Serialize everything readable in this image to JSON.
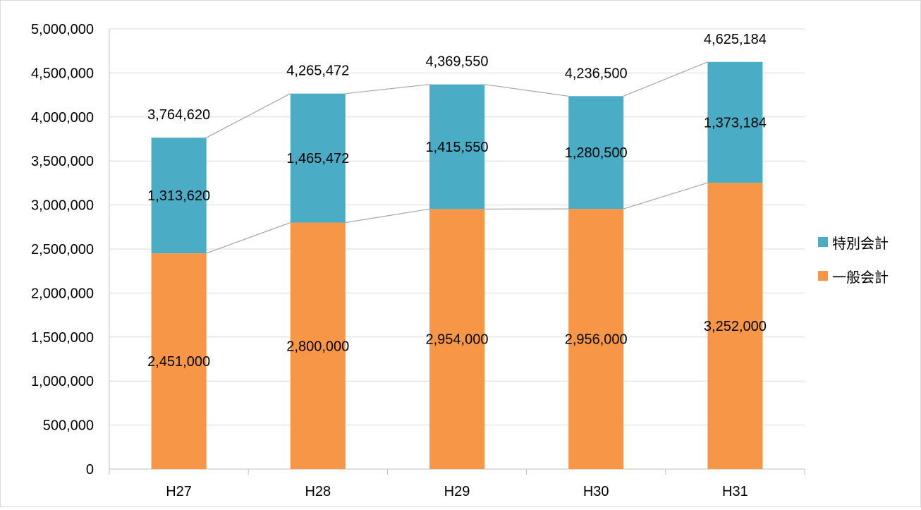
{
  "chart_data": {
    "type": "bar",
    "stacked": true,
    "categories": [
      "H27",
      "H28",
      "H29",
      "H30",
      "H31"
    ],
    "series": [
      {
        "name": "一般会計",
        "color": "#F79646",
        "values": [
          2451000,
          2800000,
          2954000,
          2956000,
          3252000
        ]
      },
      {
        "name": "特別会計",
        "color": "#4BACC6",
        "values": [
          1313620,
          1465472,
          1415550,
          1280500,
          1373184
        ]
      }
    ],
    "totals": [
      3764620,
      4265472,
      4369550,
      4236500,
      4625184
    ],
    "ylim": [
      0,
      5000000
    ],
    "yticks": [
      "0",
      "500,000",
      "1,000,000",
      "1,500,000",
      "2,000,000",
      "2,500,000",
      "3,000,000",
      "3,500,000",
      "4,000,000",
      "4,500,000",
      "5,000,000"
    ],
    "grid": true,
    "legend_position": "right",
    "series_lines": true
  }
}
